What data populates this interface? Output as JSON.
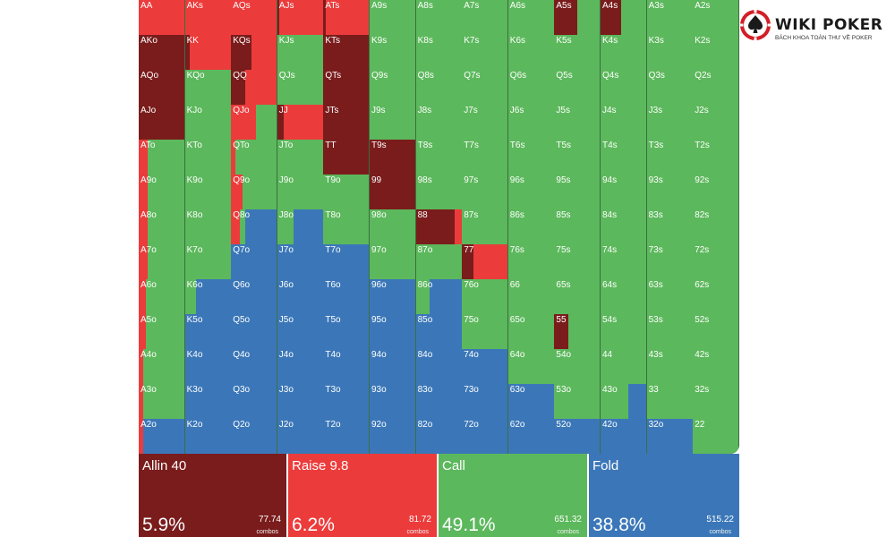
{
  "logo": {
    "title": "WIKI POKER",
    "subtitle": "BÁCH KHOA TOÀN THƯ VỀ POKER",
    "icon": "spade-chip-icon",
    "colors": {
      "red": "#d21f26",
      "dark": "#1a1a1a"
    }
  },
  "colors": {
    "allin": "#7a1c1c",
    "raise": "#ec3b3b",
    "call": "#5cb85c",
    "fold": "#3b77b8",
    "border": "#3b6e40"
  },
  "summary": [
    {
      "key": "allin",
      "label": "Allin 40",
      "pct": "5.9%",
      "combos": "77.74",
      "unit": "combos"
    },
    {
      "key": "raise",
      "label": "Raise 9.8",
      "pct": "6.2%",
      "combos": "81.72",
      "unit": "combos"
    },
    {
      "key": "call",
      "label": "Call",
      "pct": "49.1%",
      "combos": "651.32",
      "unit": "combos"
    },
    {
      "key": "fold",
      "label": "Fold",
      "pct": "38.8%",
      "combos": "515.22",
      "unit": "combos"
    }
  ],
  "hands": [
    [
      "AA",
      "AKs",
      "AQs",
      "AJs",
      "ATs",
      "A9s",
      "A8s",
      "A7s",
      "A6s",
      "A5s",
      "A4s",
      "A3s",
      "A2s"
    ],
    [
      "AKo",
      "KK",
      "KQs",
      "KJs",
      "KTs",
      "K9s",
      "K8s",
      "K7s",
      "K6s",
      "K5s",
      "K4s",
      "K3s",
      "K2s"
    ],
    [
      "AQo",
      "KQo",
      "QQ",
      "QJs",
      "QTs",
      "Q9s",
      "Q8s",
      "Q7s",
      "Q6s",
      "Q5s",
      "Q4s",
      "Q3s",
      "Q2s"
    ],
    [
      "AJo",
      "KJo",
      "QJo",
      "JJ",
      "JTs",
      "J9s",
      "J8s",
      "J7s",
      "J6s",
      "J5s",
      "J4s",
      "J3s",
      "J2s"
    ],
    [
      "ATo",
      "KTo",
      "QTo",
      "JTo",
      "TT",
      "T9s",
      "T8s",
      "T7s",
      "T6s",
      "T5s",
      "T4s",
      "T3s",
      "T2s"
    ],
    [
      "A9o",
      "K9o",
      "Q9o",
      "J9o",
      "T9o",
      "99",
      "98s",
      "97s",
      "96s",
      "95s",
      "94s",
      "93s",
      "92s"
    ],
    [
      "A8o",
      "K8o",
      "Q8o",
      "J8o",
      "T8o",
      "98o",
      "88",
      "87s",
      "86s",
      "85s",
      "84s",
      "83s",
      "82s"
    ],
    [
      "A7o",
      "K7o",
      "Q7o",
      "J7o",
      "T7o",
      "97o",
      "87o",
      "77",
      "76s",
      "75s",
      "74s",
      "73s",
      "72s"
    ],
    [
      "A6o",
      "K6o",
      "Q6o",
      "J6o",
      "T6o",
      "96o",
      "86o",
      "76o",
      "66",
      "65s",
      "64s",
      "63s",
      "62s"
    ],
    [
      "A5o",
      "K5o",
      "Q5o",
      "J5o",
      "T5o",
      "95o",
      "85o",
      "75o",
      "65o",
      "55",
      "54s",
      "53s",
      "52s"
    ],
    [
      "A4o",
      "K4o",
      "Q4o",
      "J4o",
      "T4o",
      "94o",
      "84o",
      "74o",
      "64o",
      "54o",
      "44",
      "43s",
      "42s"
    ],
    [
      "A3o",
      "K3o",
      "Q3o",
      "J3o",
      "T3o",
      "93o",
      "83o",
      "73o",
      "63o",
      "53o",
      "43o",
      "33",
      "32s"
    ],
    [
      "A2o",
      "K2o",
      "Q2o",
      "J2o",
      "T2o",
      "92o",
      "82o",
      "72o",
      "62o",
      "52o",
      "42o",
      "32o",
      "22"
    ]
  ],
  "strategy": {
    "AA": [
      0,
      1,
      0,
      0
    ],
    "AKs": [
      0,
      1,
      0,
      0
    ],
    "AQs": [
      0,
      1,
      0,
      0
    ],
    "AJs": [
      0.05,
      0.95,
      0,
      0
    ],
    "ATs": [
      0.05,
      0.95,
      0,
      0
    ],
    "A5s": [
      0.5,
      0,
      0.5,
      0
    ],
    "A4s": [
      0.45,
      0,
      0.55,
      0
    ],
    "AKo": [
      1,
      0,
      0,
      0
    ],
    "KK": [
      0.1,
      0.9,
      0,
      0
    ],
    "KQs": [
      0.45,
      0.55,
      0,
      0
    ],
    "KTs": [
      1,
      0,
      0,
      0
    ],
    "AQo": [
      1,
      0,
      0,
      0
    ],
    "QQ": [
      0.3,
      0.7,
      0,
      0
    ],
    "QTs": [
      1,
      0,
      0,
      0
    ],
    "AJo": [
      1,
      0,
      0,
      0
    ],
    "QJo": [
      0,
      0.55,
      0.45,
      0
    ],
    "JJ": [
      0.15,
      0.85,
      0,
      0
    ],
    "JTs": [
      1,
      0,
      0,
      0
    ],
    "ATo": [
      0,
      0.2,
      0.8,
      0
    ],
    "QTo": [
      0,
      0.1,
      0.9,
      0
    ],
    "TT": [
      1,
      0,
      0,
      0
    ],
    "T9s": [
      1,
      0,
      0,
      0
    ],
    "A9o": [
      0,
      0.2,
      0.8,
      0
    ],
    "Q9o": [
      0,
      0.25,
      0.75,
      0
    ],
    "99": [
      1,
      0,
      0,
      0
    ],
    "A8o": [
      0,
      0.2,
      0.8,
      0
    ],
    "Q8o": [
      0,
      0.2,
      0.1,
      0.7
    ],
    "J8o": [
      0,
      0,
      0.35,
      0.65
    ],
    "88": [
      0.85,
      0.15,
      0,
      0
    ],
    "A7o": [
      0,
      0.2,
      0.8,
      0
    ],
    "K7o": [
      0,
      0,
      1,
      0
    ],
    "Q7o": [
      0,
      0,
      0,
      1
    ],
    "J7o": [
      0,
      0,
      0,
      1
    ],
    "T7o": [
      0,
      0,
      0,
      1
    ],
    "97o": [
      0,
      0,
      1,
      0
    ],
    "87o": [
      0,
      0,
      1,
      0
    ],
    "77": [
      0.25,
      0.75,
      0,
      0
    ],
    "A6o": [
      0,
      0.15,
      0.85,
      0
    ],
    "K6o": [
      0,
      0,
      0.25,
      0.75
    ],
    "Q6o": [
      0,
      0,
      0,
      1
    ],
    "J6o": [
      0,
      0,
      0,
      1
    ],
    "T6o": [
      0,
      0,
      0,
      1
    ],
    "96o": [
      0,
      0,
      0,
      1
    ],
    "86o": [
      0,
      0,
      0.3,
      0.7
    ],
    "76o": [
      0,
      0,
      1,
      0
    ],
    "A5o": [
      0,
      0.15,
      0.85,
      0
    ],
    "K5o": [
      0,
      0,
      0,
      1
    ],
    "Q5o": [
      0,
      0,
      0,
      1
    ],
    "J5o": [
      0,
      0,
      0,
      1
    ],
    "T5o": [
      0,
      0,
      0,
      1
    ],
    "95o": [
      0,
      0,
      0,
      1
    ],
    "85o": [
      0,
      0,
      0,
      1
    ],
    "75o": [
      0,
      0,
      1,
      0
    ],
    "65o": [
      0,
      0,
      1,
      0
    ],
    "55": [
      0.3,
      0,
      0.7,
      0
    ],
    "A4o": [
      0,
      0.1,
      0.9,
      0
    ],
    "K4o": [
      0,
      0,
      0,
      1
    ],
    "Q4o": [
      0,
      0,
      0,
      1
    ],
    "J4o": [
      0,
      0,
      0,
      1
    ],
    "T4o": [
      0,
      0,
      0,
      1
    ],
    "94o": [
      0,
      0,
      0,
      1
    ],
    "84o": [
      0,
      0,
      0,
      1
    ],
    "74o": [
      0,
      0,
      0,
      1
    ],
    "64o": [
      0,
      0,
      1,
      0
    ],
    "54o": [
      0,
      0,
      1,
      0
    ],
    "A3o": [
      0,
      0.1,
      0.9,
      0
    ],
    "K3o": [
      0,
      0,
      0,
      1
    ],
    "Q3o": [
      0,
      0,
      0,
      1
    ],
    "J3o": [
      0,
      0,
      0,
      1
    ],
    "T3o": [
      0,
      0,
      0,
      1
    ],
    "93o": [
      0,
      0,
      0,
      1
    ],
    "83o": [
      0,
      0,
      0,
      1
    ],
    "73o": [
      0,
      0,
      0,
      1
    ],
    "63o": [
      0,
      0,
      0,
      1
    ],
    "53o": [
      0,
      0,
      1,
      0
    ],
    "43o": [
      0,
      0,
      0.6,
      0.4
    ],
    "A2o": [
      0,
      0.1,
      0,
      0.9
    ],
    "K2o": [
      0,
      0,
      0,
      1
    ],
    "Q2o": [
      0,
      0,
      0,
      1
    ],
    "J2o": [
      0,
      0,
      0,
      1
    ],
    "T2o": [
      0,
      0,
      0,
      1
    ],
    "92o": [
      0,
      0,
      0,
      1
    ],
    "82o": [
      0,
      0,
      0,
      1
    ],
    "72o": [
      0,
      0,
      0,
      1
    ],
    "62o": [
      0,
      0,
      0,
      1
    ],
    "52o": [
      0,
      0,
      0,
      1
    ],
    "42o": [
      0,
      0,
      0,
      1
    ],
    "32o": [
      0,
      0,
      0,
      1
    ]
  }
}
